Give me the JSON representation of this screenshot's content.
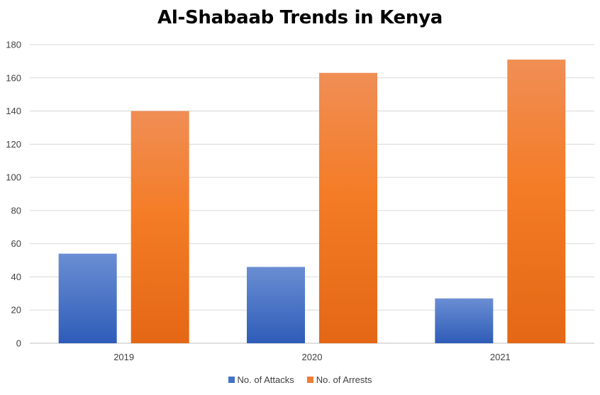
{
  "chart_data": {
    "type": "bar",
    "title": "Al-Shabaab Trends in Kenya",
    "categories": [
      "2019",
      "2020",
      "2021"
    ],
    "series": [
      {
        "name": "No. of Attacks",
        "values": [
          54,
          46,
          27
        ],
        "color": "#4472C4"
      },
      {
        "name": "No. of Arrests",
        "values": [
          140,
          163,
          171
        ],
        "color": "#ED7D31"
      }
    ],
    "ylim": [
      0,
      180
    ],
    "yticks": [
      0,
      20,
      40,
      60,
      80,
      100,
      120,
      140,
      160,
      180
    ],
    "grid": true,
    "legend_position": "bottom"
  }
}
